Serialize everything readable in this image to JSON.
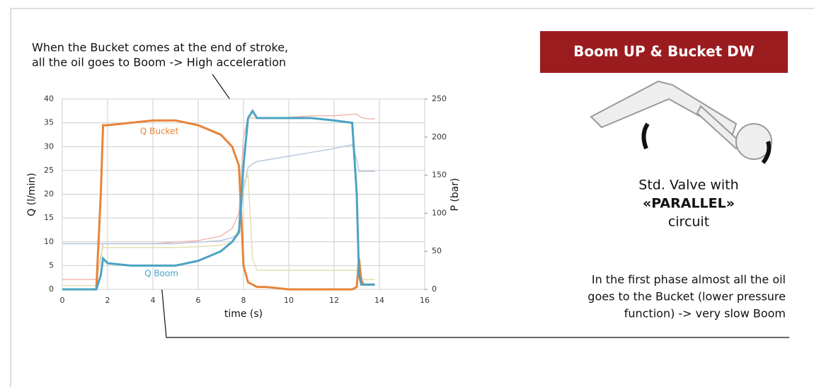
{
  "chart_data": {
    "type": "line",
    "title": "Boom UP & Bucket DW",
    "x_label": "time (s)",
    "y_label": "Q (l/min)",
    "y2_label": "P (bar)",
    "xlim": [
      0,
      16
    ],
    "xticks": [
      0,
      2,
      4,
      6,
      8,
      10,
      12,
      14,
      16
    ],
    "ylim": [
      0,
      40
    ],
    "yticks": [
      0,
      5,
      10,
      15,
      20,
      25,
      30,
      35,
      40
    ],
    "y2lim": [
      0,
      250
    ],
    "y2ticks": [
      0,
      50,
      100,
      150,
      200,
      250
    ],
    "grid": true,
    "x": [
      0,
      1.5,
      1.7,
      1.8,
      2,
      3,
      4,
      5,
      6,
      7,
      7.5,
      7.8,
      8,
      8.2,
      8.4,
      8.6,
      9,
      10,
      11,
      12,
      12.8,
      13,
      13.1,
      13.2,
      13.3,
      13.5,
      13.8
    ],
    "series": [
      {
        "name": "Q Bucket",
        "color": "#e8833a",
        "values": [
          0,
          0,
          20,
          34.5,
          34.5,
          35,
          35.5,
          35.5,
          34.5,
          32.5,
          30,
          26,
          5,
          1.5,
          1,
          0.5,
          0.5,
          0,
          0,
          0,
          0,
          0.5,
          6.5,
          2,
          1,
          1,
          1
        ]
      },
      {
        "name": "Q Boom",
        "color": "#4ba3c3",
        "values": [
          0,
          0,
          3,
          6.5,
          5.5,
          5,
          5,
          5,
          6,
          8,
          10,
          12,
          26,
          36,
          37.5,
          36,
          36,
          36,
          36,
          35.5,
          35,
          20,
          3,
          1,
          1,
          1,
          1
        ]
      },
      {
        "color": "#f0b8b0",
        "axis": "y2",
        "values": [
          13,
          13,
          40,
          60,
          60,
          60,
          60,
          62,
          64,
          70,
          80,
          100,
          200,
          225,
          225,
          225,
          225,
          226,
          228,
          228,
          230,
          230,
          228,
          226,
          225,
          224,
          224
        ]
      },
      {
        "color": "#b8c8e0",
        "axis": "y2",
        "values": [
          60,
          60,
          60,
          60,
          60,
          60,
          60,
          60,
          62,
          64,
          68,
          75,
          130,
          160,
          165,
          168,
          170,
          175,
          180,
          185,
          190,
          170,
          155,
          155,
          155,
          155,
          155
        ]
      },
      {
        "color": "#e2e0b0",
        "axis": "y2",
        "values": [
          5,
          5,
          45,
          55,
          55,
          55,
          55,
          55,
          56,
          58,
          62,
          80,
          140,
          150,
          40,
          25,
          25,
          25,
          25,
          25,
          25,
          25,
          20,
          15,
          13,
          13,
          13
        ]
      }
    ],
    "annotations": [
      "When the Bucket comes at the end of stroke,",
      "all the oil goes to Boom -> High acceleration",
      "Std. Valve with",
      "«PARALLEL»",
      "circuit",
      "In the first phase almost all the oil",
      "goes to the Bucket (lower pressure",
      "function) -> very slow Boom"
    ]
  }
}
